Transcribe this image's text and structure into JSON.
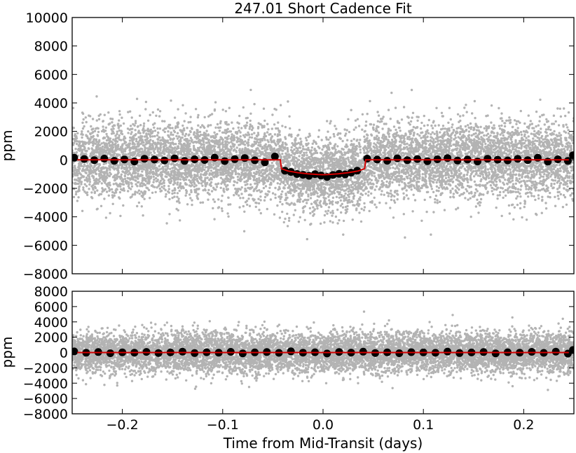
{
  "chart_data": [
    {
      "type": "scatter",
      "title": "247.01 Short Cadence Fit",
      "xlabel": "",
      "ylabel": "ppm",
      "xlim": [
        -0.25,
        0.25
      ],
      "ylim": [
        -8000,
        10000
      ],
      "xticks": [],
      "yticks": [
        {
          "value": -8000,
          "label": "−8000"
        },
        {
          "value": -6000,
          "label": "−6000"
        },
        {
          "value": -4000,
          "label": "−4000"
        },
        {
          "value": -2000,
          "label": "−2000"
        },
        {
          "value": 0,
          "label": "0"
        },
        {
          "value": 2000,
          "label": "2000"
        },
        {
          "value": 4000,
          "label": "4000"
        },
        {
          "value": 6000,
          "label": "6000"
        },
        {
          "value": 8000,
          "label": "8000"
        },
        {
          "value": 10000,
          "label": "10000"
        }
      ],
      "grid": false,
      "colors": {
        "raw": "#9a9a9a",
        "binned": "#000000",
        "model": "#d40000"
      },
      "raw_scatter": {
        "n_points": 9000,
        "std": 1300,
        "x_range": [
          -0.25,
          0.25
        ]
      },
      "series": [
        {
          "kind": "binned",
          "x": [
            -0.248,
            -0.238,
            -0.228,
            -0.218,
            -0.208,
            -0.198,
            -0.188,
            -0.178,
            -0.168,
            -0.158,
            -0.148,
            -0.138,
            -0.128,
            -0.118,
            -0.108,
            -0.098,
            -0.088,
            -0.078,
            -0.068,
            -0.058,
            -0.048,
            -0.038,
            -0.032,
            -0.026,
            -0.02,
            -0.014,
            -0.008,
            -0.002,
            0.004,
            0.01,
            0.016,
            0.022,
            0.028,
            0.034,
            0.044,
            0.054,
            0.064,
            0.074,
            0.084,
            0.094,
            0.104,
            0.114,
            0.124,
            0.134,
            0.144,
            0.154,
            0.164,
            0.174,
            0.184,
            0.194,
            0.204,
            0.214,
            0.224,
            0.234,
            0.244,
            0.249
          ],
          "y": [
            150,
            60,
            -20,
            90,
            -60,
            30,
            -110,
            80,
            20,
            -40,
            110,
            -70,
            40,
            -10,
            160,
            -80,
            50,
            130,
            -30,
            -170,
            240,
            -760,
            -850,
            -990,
            -1050,
            -1120,
            -1000,
            -1100,
            -1200,
            -1060,
            -980,
            -1020,
            -900,
            -760,
            90,
            20,
            -60,
            110,
            -20,
            60,
            -90,
            40,
            130,
            -50,
            20,
            -110,
            80,
            10,
            -40,
            70,
            -20,
            150,
            -120,
            40,
            -70,
            320
          ]
        },
        {
          "kind": "model",
          "x": [
            -0.245,
            -0.0425,
            -0.0415,
            -0.035,
            -0.025,
            -0.015,
            -0.005,
            0.0,
            0.005,
            0.015,
            0.025,
            0.035,
            0.0415,
            0.0425,
            0.245
          ],
          "y": [
            0,
            0,
            -620,
            -780,
            -900,
            -980,
            -1030,
            -1040,
            -1030,
            -980,
            -900,
            -780,
            -620,
            0,
            0
          ]
        }
      ]
    },
    {
      "type": "scatter",
      "title": "",
      "xlabel": "Time from Mid-Transit (days)",
      "ylabel": "ppm",
      "xlim": [
        -0.25,
        0.25
      ],
      "ylim": [
        -8000,
        8000
      ],
      "xticks": [
        {
          "value": -0.2,
          "label": "−0.2"
        },
        {
          "value": -0.1,
          "label": "−0.1"
        },
        {
          "value": 0.0,
          "label": "0.0"
        },
        {
          "value": 0.1,
          "label": "0.1"
        },
        {
          "value": 0.2,
          "label": "0.2"
        }
      ],
      "yticks": [
        {
          "value": -8000,
          "label": "−8000"
        },
        {
          "value": -6000,
          "label": "−6000"
        },
        {
          "value": -4000,
          "label": "−4000"
        },
        {
          "value": -2000,
          "label": "−2000"
        },
        {
          "value": 0,
          "label": "0"
        },
        {
          "value": 2000,
          "label": "2000"
        },
        {
          "value": 4000,
          "label": "4000"
        },
        {
          "value": 6000,
          "label": "6000"
        },
        {
          "value": 8000,
          "label": "8000"
        }
      ],
      "grid": false,
      "colors": {
        "raw": "#9a9a9a",
        "binned": "#000000",
        "model": "#d40000"
      },
      "raw_scatter": {
        "n_points": 9000,
        "std": 1300,
        "x_range": [
          -0.25,
          0.25
        ]
      },
      "series": [
        {
          "kind": "binned",
          "x": [
            -0.248,
            -0.236,
            -0.224,
            -0.212,
            -0.2,
            -0.188,
            -0.176,
            -0.164,
            -0.152,
            -0.14,
            -0.128,
            -0.116,
            -0.104,
            -0.092,
            -0.08,
            -0.068,
            -0.056,
            -0.044,
            -0.032,
            -0.02,
            -0.008,
            0.004,
            0.016,
            0.028,
            0.04,
            0.052,
            0.064,
            0.076,
            0.088,
            0.1,
            0.112,
            0.124,
            0.136,
            0.148,
            0.16,
            0.172,
            0.184,
            0.196,
            0.208,
            0.22,
            0.232,
            0.244,
            0.249
          ],
          "y": [
            150,
            -40,
            60,
            -90,
            30,
            -20,
            80,
            -60,
            10,
            120,
            -70,
            40,
            -30,
            90,
            -110,
            20,
            60,
            -50,
            160,
            -20,
            40,
            -130,
            70,
            -10,
            110,
            -60,
            30,
            -90,
            50,
            20,
            -40,
            130,
            -70,
            10,
            60,
            -110,
            40,
            -20,
            90,
            -50,
            120,
            -140,
            330
          ]
        },
        {
          "kind": "model",
          "x": [
            -0.245,
            0.245
          ],
          "y": [
            0,
            0
          ]
        }
      ]
    }
  ]
}
